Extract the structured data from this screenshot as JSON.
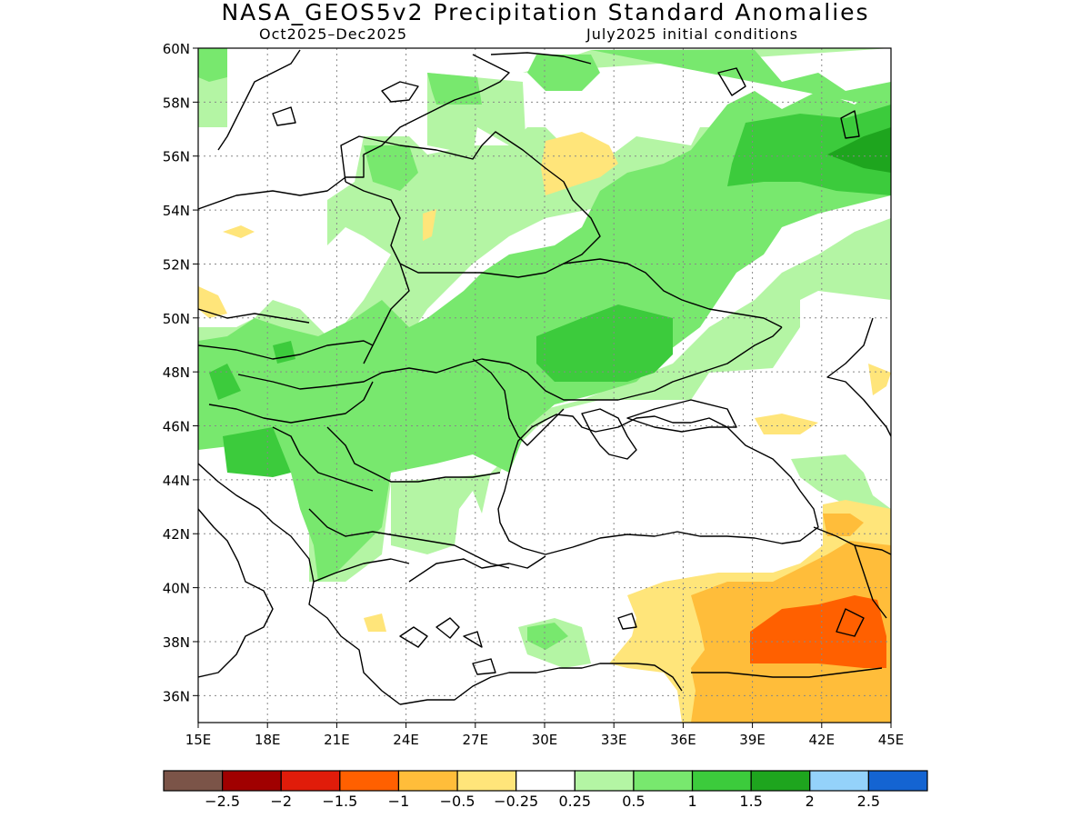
{
  "title": "NASA_GEOS5v2 Precipitation Standard Anomalies",
  "period": "Oct2025–Dec2025",
  "init": "July2025 initial conditions",
  "lat_labels": [
    "60N",
    "58N",
    "56N",
    "54N",
    "52N",
    "50N",
    "48N",
    "46N",
    "44N",
    "42N",
    "40N",
    "38N",
    "36N"
  ],
  "lon_labels": [
    "15E",
    "18E",
    "21E",
    "24E",
    "27E",
    "30E",
    "33E",
    "36E",
    "39E",
    "42E",
    "45E"
  ],
  "colorbar": {
    "colors": [
      "#7b5448",
      "#a00000",
      "#e01c0a",
      "#ff6000",
      "#ffbd3a",
      "#ffe57a",
      "#ffffff",
      "#b4f5a4",
      "#78e86e",
      "#3ccb3c",
      "#1ea51e",
      "#94d2fa",
      "#1464d2"
    ],
    "labels": [
      "−2.5",
      "−2",
      "−1.5",
      "−1",
      "−0.5",
      "−0.25",
      "0.25",
      "0.5",
      "1",
      "1.5",
      "2",
      "2.5"
    ]
  }
}
